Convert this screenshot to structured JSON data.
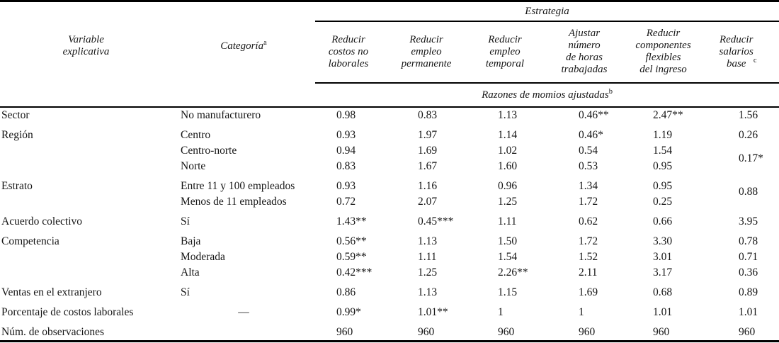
{
  "page": {
    "background_color": "#ffffff",
    "text_color": "#161616",
    "rule_color": "#000000"
  },
  "table": {
    "span_header": "Estrategia",
    "variable_header": "Variable\nexplicativa",
    "category_header": {
      "text": "Categoría",
      "sup": "a"
    },
    "strategy_headers": [
      {
        "text": "Reducir\ncostos no\nlaborales",
        "sup": ""
      },
      {
        "text": "Reducir\nempleo\npermanente",
        "sup": ""
      },
      {
        "text": "Reducir\nempleo\ntemporal",
        "sup": ""
      },
      {
        "text": "Ajustar\nnúmero\nde horas\ntrabajadas",
        "sup": ""
      },
      {
        "text": "Reducir\ncomponentes\nflexibles\ndel ingreso",
        "sup": ""
      },
      {
        "text": "Reducir\nsalarios\nbase",
        "sup": "c"
      }
    ],
    "subheader": {
      "text": "Razones de momios ajustadas",
      "sup": "b"
    },
    "groups": [
      {
        "variable": "Sector",
        "rows": [
          {
            "category": "No manufacturero",
            "values": [
              "0.98",
              "0.83",
              "1.13",
              "0.46**",
              "2.47**",
              "1.56"
            ]
          }
        ]
      },
      {
        "variable": "Región",
        "rows": [
          {
            "category": "Centro",
            "values": [
              "0.93",
              "1.97",
              "1.14",
              "0.46*",
              "1.19",
              "0.26"
            ]
          },
          {
            "category": "Centro-norte",
            "values": [
              "0.94",
              "1.69",
              "1.02",
              "0.54",
              "1.54",
              {
                "text": "0.17*",
                "rowspan": 2
              }
            ]
          },
          {
            "category": "Norte",
            "values": [
              "0.83",
              "1.67",
              "1.60",
              "0.53",
              "0.95",
              null
            ]
          }
        ]
      },
      {
        "variable": "Estrato",
        "rows": [
          {
            "category": "Entre 11 y 100 empleados",
            "values": [
              "0.93",
              "1.16",
              "0.96",
              "1.34",
              "0.95",
              {
                "text": "0.88",
                "rowspan": 2
              }
            ]
          },
          {
            "category": "Menos de 11 empleados",
            "values": [
              "0.72",
              "2.07",
              "1.25",
              "1.72",
              "0.25",
              null
            ]
          }
        ]
      },
      {
        "variable": "Acuerdo colectivo",
        "rows": [
          {
            "category": "Sí",
            "values": [
              "1.43**",
              "0.45***",
              "1.11",
              "0.62",
              "0.66",
              "3.95"
            ]
          }
        ]
      },
      {
        "variable": "Competencia",
        "rows": [
          {
            "category": "Baja",
            "values": [
              "0.56**",
              "1.13",
              "1.50",
              "1.72",
              "3.30",
              "0.78"
            ]
          },
          {
            "category": "Moderada",
            "values": [
              "0.59**",
              "1.11",
              "1.54",
              "1.52",
              "3.01",
              "0.71"
            ]
          },
          {
            "category": "Alta",
            "values": [
              "0.42***",
              "1.25",
              "2.26**",
              "2.11",
              "3.17",
              "0.36"
            ]
          }
        ]
      },
      {
        "variable": "Ventas en el extranjero",
        "rows": [
          {
            "category": "Sí",
            "values": [
              "0.86",
              "1.13",
              "1.15",
              "1.69",
              "0.68",
              "0.89"
            ]
          }
        ]
      },
      {
        "variable": "Porcentaje de costos laborales",
        "rows": [
          {
            "category": "—",
            "category_center": true,
            "values": [
              "0.99*",
              "1.01**",
              "1",
              "1",
              "1.01",
              "1.01"
            ]
          }
        ]
      },
      {
        "variable": "Núm. de observaciones",
        "rows": [
          {
            "category": "",
            "values": [
              "960",
              "960",
              "960",
              "960",
              "960",
              "960"
            ]
          }
        ]
      }
    ]
  }
}
